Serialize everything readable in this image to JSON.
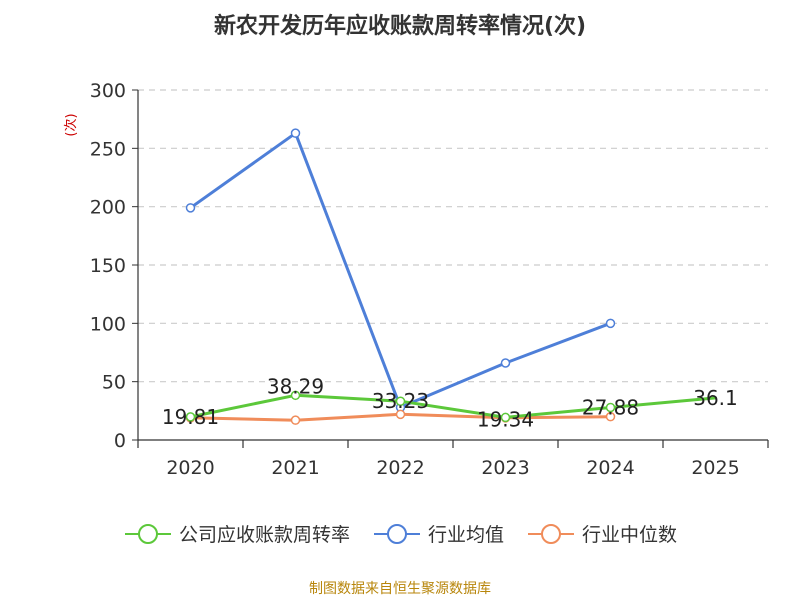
{
  "chart_data": {
    "type": "line",
    "title": "新农开发历年应收账款周转率情况(次)",
    "ylabel": "(次)",
    "xlabel": "",
    "categories": [
      "2020",
      "2021",
      "2022",
      "2023",
      "2024",
      "2025"
    ],
    "ylim": [
      0,
      300
    ],
    "yticks": [
      0,
      50,
      100,
      150,
      200,
      250,
      300
    ],
    "grid": true,
    "legend_position": "bottom",
    "series": [
      {
        "name": "公司应收账款周转率",
        "color": "#5cc83a",
        "values": [
          19.81,
          38.29,
          33.23,
          19.34,
          27.88,
          36.1
        ],
        "labels": [
          "19.81",
          "38.29",
          "33.23",
          "19.34",
          "27.88",
          "36.1"
        ],
        "show_markers": [
          true,
          true,
          true,
          true,
          true,
          false
        ]
      },
      {
        "name": "行业均值",
        "color": "#4e7fd8",
        "values": [
          199,
          263,
          28,
          66,
          100,
          null
        ],
        "show_markers": [
          true,
          true,
          true,
          true,
          true,
          false
        ]
      },
      {
        "name": "行业中位数",
        "color": "#f08c5a",
        "values": [
          19,
          17,
          22,
          19,
          20,
          null
        ],
        "show_markers": [
          true,
          true,
          true,
          true,
          true,
          false
        ]
      }
    ]
  },
  "source_note": "制图数据来自恒生聚源数据库"
}
